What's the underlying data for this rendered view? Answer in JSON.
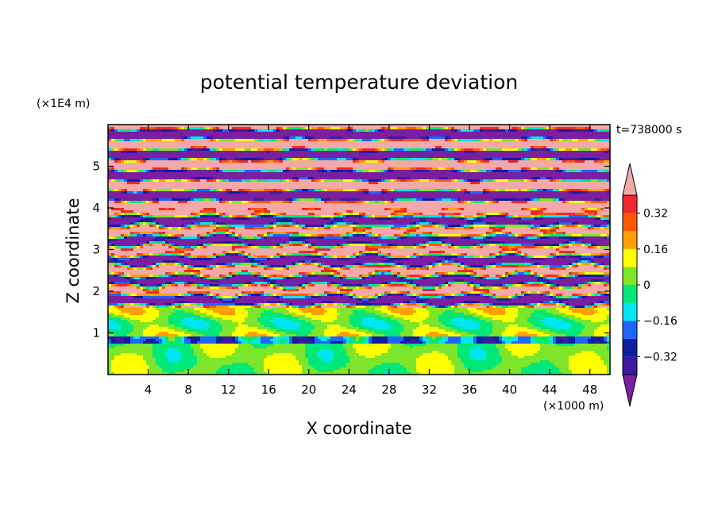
{
  "chart_data": {
    "type": "heatmap",
    "title": "potential temperature deviation",
    "xlabel": "X coordinate",
    "ylabel": "Z coordinate",
    "x_unit": "(×1000 m)",
    "y_unit": "(×1E4 m)",
    "time_label": "t=738000 s",
    "xlim": [
      0,
      50
    ],
    "ylim": [
      0,
      6
    ],
    "x_ticks": [
      4,
      8,
      12,
      16,
      20,
      24,
      28,
      32,
      36,
      40,
      44,
      48
    ],
    "x_tick_labels": [
      "4",
      "8",
      "12",
      "16",
      "20",
      "24",
      "28",
      "32",
      "36",
      "40",
      "44",
      "48"
    ],
    "y_ticks": [
      1,
      2,
      3,
      4,
      5
    ],
    "y_tick_labels": [
      "1",
      "2",
      "3",
      "4",
      "5"
    ],
    "colorbar": {
      "levels": [
        -0.4,
        -0.32,
        -0.24,
        -0.16,
        -0.08,
        0,
        0.08,
        0.16,
        0.24,
        0.32,
        0.4
      ],
      "labeled_levels": [
        0.32,
        0.16,
        0,
        -0.16,
        -0.32
      ],
      "labels": [
        "0.32",
        "0.16",
        "0",
        "−0.16",
        "−0.32"
      ],
      "colors": [
        "#7b1fa2",
        "#3c1aa0",
        "#0f1e9e",
        "#1e64ff",
        "#00e6f0",
        "#00e878",
        "#7ee62a",
        "#ffff00",
        "#ffa000",
        "#ff5a00",
        "#f0282a",
        "#f5a8a8"
      ],
      "extend": "both"
    },
    "grid": false,
    "legend": "right"
  }
}
